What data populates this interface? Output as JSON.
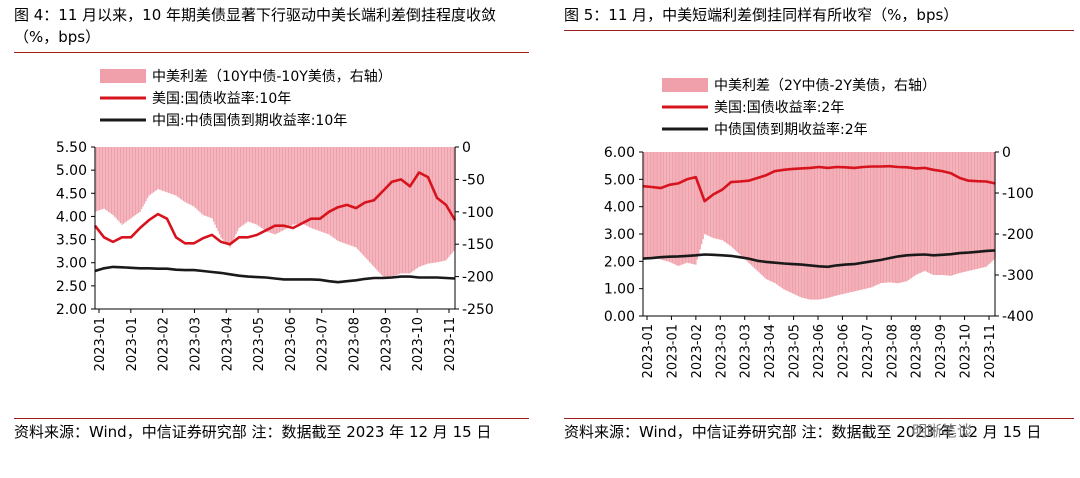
{
  "charts": [
    {
      "title": "图 4：11 月以来，10 年期美债显著下行驱动中美长端利差倒挂程度收敛（%，bps）",
      "source": "资料来源：Wind，中信证券研究部  注：数据截至 2023 年 12 月 15 日",
      "legend": [
        "中美利差（10Y中债-10Y美债，右轴）",
        "美国:国债收益率:10年",
        "中国:中债国债到期收益率:10年"
      ]
    },
    {
      "title": "图 5：11 月，中美短端利差倒挂同样有所收窄（%，bps）",
      "source": "资料来源：Wind，中信证券研究部  注：数据截至 2023 年 12 月 15 日",
      "legend": [
        "中美利差（2Y中债-2Y美债，右轴）",
        "美国:国债收益率:2年",
        "中债国债到期收益率:2年"
      ]
    }
  ],
  "watermark": "明晰笔谈",
  "colors": {
    "bar": "#f0a0aa",
    "us": "#d7141e",
    "cn": "#1a1a1a",
    "rule": "#9e1d1d"
  },
  "chart_data": [
    {
      "type": "line",
      "x_ticks": [
        "2023-01",
        "2023-01",
        "2023-02",
        "2023-03",
        "2023-04",
        "2023-05",
        "2023-06",
        "2023-07",
        "2023-08",
        "2023-09",
        "2023-10",
        "2023-11"
      ],
      "y_left": {
        "lim": [
          2.0,
          5.5
        ],
        "ticks": [
          "5.50",
          "5.00",
          "4.50",
          "4.00",
          "3.50",
          "3.00",
          "2.50",
          "2.00"
        ]
      },
      "y_right": {
        "lim": [
          -250,
          0
        ],
        "ticks": [
          "0",
          "-50",
          "-100",
          "-150",
          "-200",
          "-250"
        ]
      },
      "series": [
        {
          "name": "中美利差（10Y中债-10Y美债，右轴）",
          "axis": "right",
          "style": "bar",
          "values": [
            -100,
            -95,
            -105,
            -120,
            -110,
            -100,
            -75,
            -65,
            -70,
            -75,
            -85,
            -92,
            -105,
            -110,
            -140,
            -155,
            -125,
            -115,
            -120,
            -130,
            -135,
            -128,
            -120,
            -118,
            -125,
            -130,
            -135,
            -145,
            -150,
            -155,
            -170,
            -185,
            -200,
            -200,
            -195,
            -195,
            -185,
            -180,
            -178,
            -175,
            -158
          ]
        },
        {
          "name": "美国:国债收益率:10年",
          "axis": "left",
          "style": "line",
          "values": [
            3.8,
            3.55,
            3.45,
            3.55,
            3.55,
            3.75,
            3.92,
            4.05,
            3.95,
            3.55,
            3.42,
            3.42,
            3.53,
            3.6,
            3.45,
            3.4,
            3.55,
            3.55,
            3.6,
            3.7,
            3.8,
            3.8,
            3.75,
            3.85,
            3.95,
            3.95,
            4.1,
            4.2,
            4.25,
            4.18,
            4.3,
            4.35,
            4.55,
            4.75,
            4.8,
            4.65,
            4.95,
            4.85,
            4.4,
            4.25,
            3.92
          ]
        },
        {
          "name": "中国:中债国债到期收益率:10年",
          "axis": "left",
          "style": "line",
          "values": [
            2.82,
            2.88,
            2.91,
            2.9,
            2.89,
            2.88,
            2.88,
            2.87,
            2.87,
            2.85,
            2.84,
            2.84,
            2.82,
            2.8,
            2.78,
            2.75,
            2.72,
            2.7,
            2.69,
            2.68,
            2.66,
            2.64,
            2.64,
            2.64,
            2.64,
            2.63,
            2.6,
            2.58,
            2.6,
            2.62,
            2.65,
            2.67,
            2.67,
            2.68,
            2.7,
            2.7,
            2.68,
            2.68,
            2.68,
            2.67,
            2.66
          ]
        }
      ]
    },
    {
      "type": "line",
      "x_ticks": [
        "2023-01",
        "2023-01",
        "2023-02",
        "2023-03",
        "2023-03",
        "2023-04",
        "2023-05",
        "2023-06",
        "2023-06",
        "2023-07",
        "2023-08",
        "2023-08",
        "2023-09",
        "2023-10",
        "2023-11"
      ],
      "y_left": {
        "lim": [
          0,
          6
        ],
        "ticks": [
          "6.00",
          "5.00",
          "4.00",
          "3.00",
          "2.00",
          "1.00",
          "0.00"
        ]
      },
      "y_right": {
        "lim": [
          -400,
          0
        ],
        "ticks": [
          "0",
          "-100",
          "-200",
          "-300",
          "-400"
        ]
      },
      "series": [
        {
          "name": "中美利差（2Y中债-2Y美债，右轴）",
          "axis": "right",
          "style": "bar",
          "values": [
            -260,
            -258,
            -262,
            -268,
            -278,
            -270,
            -275,
            -200,
            -210,
            -215,
            -230,
            -250,
            -270,
            -290,
            -310,
            -320,
            -335,
            -345,
            -355,
            -360,
            -360,
            -356,
            -350,
            -345,
            -340,
            -335,
            -330,
            -320,
            -318,
            -320,
            -315,
            -300,
            -290,
            -300,
            -300,
            -302,
            -295,
            -290,
            -285,
            -280,
            -260
          ]
        },
        {
          "name": "美国:国债收益率:2年",
          "axis": "left",
          "style": "line",
          "values": [
            4.75,
            4.72,
            4.68,
            4.8,
            4.85,
            5.0,
            5.08,
            4.2,
            4.45,
            4.62,
            4.9,
            4.92,
            4.95,
            5.05,
            5.15,
            5.3,
            5.35,
            5.38,
            5.4,
            5.42,
            5.45,
            5.42,
            5.45,
            5.44,
            5.42,
            5.45,
            5.47,
            5.47,
            5.48,
            5.45,
            5.44,
            5.4,
            5.42,
            5.35,
            5.3,
            5.22,
            5.05,
            4.95,
            4.93,
            4.92,
            4.85
          ]
        },
        {
          "name": "中债国债到期收益率:2年",
          "axis": "left",
          "style": "line",
          "values": [
            2.1,
            2.12,
            2.15,
            2.17,
            2.18,
            2.2,
            2.22,
            2.25,
            2.24,
            2.22,
            2.2,
            2.15,
            2.1,
            2.02,
            1.98,
            1.95,
            1.92,
            1.9,
            1.88,
            1.85,
            1.82,
            1.8,
            1.85,
            1.88,
            1.9,
            1.95,
            2.0,
            2.05,
            2.12,
            2.18,
            2.22,
            2.24,
            2.25,
            2.22,
            2.24,
            2.26,
            2.3,
            2.32,
            2.35,
            2.38,
            2.4
          ]
        }
      ]
    }
  ]
}
